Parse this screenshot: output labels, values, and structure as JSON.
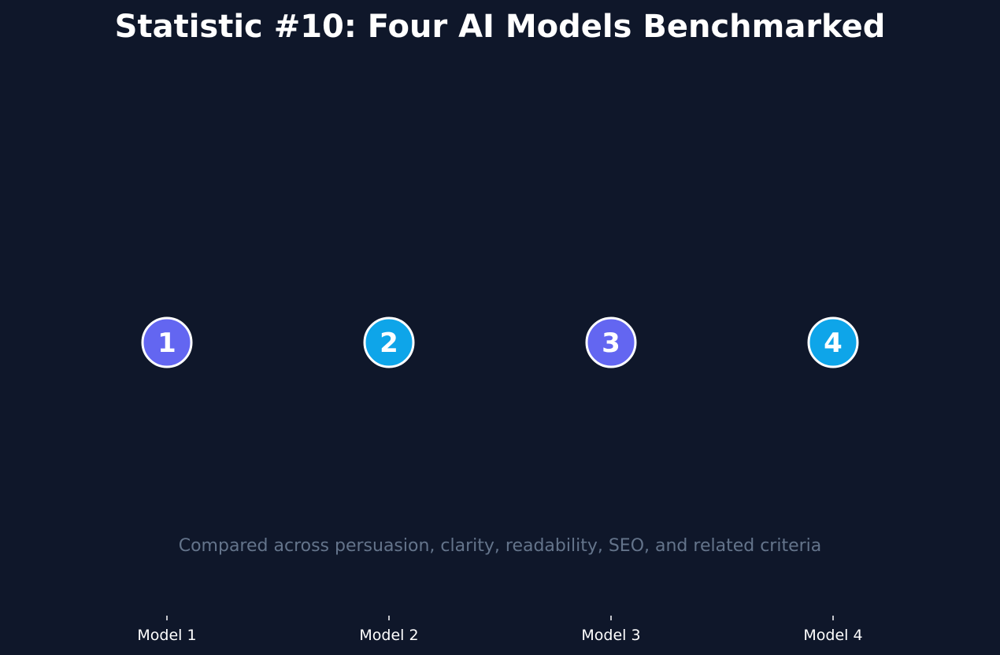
{
  "chart_data": {
    "type": "scatter",
    "title": "Statistic #10: Four AI Models Benchmarked",
    "annotation": "Compared across persuasion, clarity, readability, SEO, and related criteria",
    "xlabel": "",
    "ylabel": "",
    "categories": [
      "Model 1",
      "Model 2",
      "Model 3",
      "Model 4"
    ],
    "points": [
      {
        "category": "Model 1",
        "label": "1",
        "color": "#6366f1"
      },
      {
        "category": "Model 2",
        "label": "2",
        "color": "#0ea5e9"
      },
      {
        "category": "Model 3",
        "label": "3",
        "color": "#6366f1"
      },
      {
        "category": "Model 4",
        "label": "4",
        "color": "#0ea5e9"
      }
    ],
    "grid": false,
    "legend": "none",
    "colors": {
      "background": "#0f172a",
      "text": "#ffffff",
      "annotation": "#64748b",
      "marker_edge": "#ffffff"
    }
  }
}
